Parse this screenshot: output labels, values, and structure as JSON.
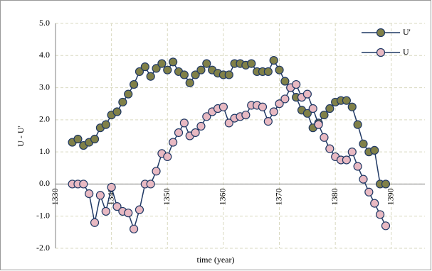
{
  "chart_data": {
    "type": "line",
    "xlabel": "time (year)",
    "ylabel": "U - U'",
    "x": [
      1333,
      1334,
      1335,
      1336,
      1337,
      1338,
      1339,
      1340,
      1341,
      1342,
      1343,
      1344,
      1345,
      1346,
      1347,
      1348,
      1349,
      1350,
      1351,
      1352,
      1353,
      1354,
      1355,
      1356,
      1357,
      1358,
      1359,
      1360,
      1361,
      1362,
      1363,
      1364,
      1365,
      1366,
      1367,
      1368,
      1369,
      1370,
      1371,
      1372,
      1373,
      1374,
      1375,
      1376,
      1377,
      1378,
      1379,
      1380,
      1381,
      1382,
      1383,
      1384,
      1385,
      1386,
      1387,
      1388,
      1389
    ],
    "series": [
      {
        "name": "U'",
        "color": "#1f3864",
        "marker_color": "#808048",
        "values": [
          1.3,
          1.4,
          1.2,
          1.3,
          1.4,
          1.75,
          1.85,
          2.15,
          2.25,
          2.55,
          2.8,
          3.1,
          3.5,
          3.65,
          3.35,
          3.6,
          3.75,
          3.55,
          3.8,
          3.5,
          3.4,
          3.15,
          3.4,
          3.55,
          3.75,
          3.55,
          3.45,
          3.4,
          3.4,
          3.75,
          3.75,
          3.7,
          3.75,
          3.5,
          3.5,
          3.5,
          3.85,
          3.55,
          3.2,
          3.0,
          2.7,
          2.3,
          2.2,
          1.75,
          1.9,
          2.15,
          2.35,
          2.55,
          2.6,
          2.6,
          2.4,
          1.85,
          1.25,
          1.0,
          1.05,
          0.0,
          0.0
        ]
      },
      {
        "name": "U",
        "color": "#1f3864",
        "marker_color": "#e8b9c2",
        "values": [
          0,
          0,
          0,
          -0.3,
          -1.2,
          -0.35,
          -0.85,
          -0.1,
          -0.7,
          -0.85,
          -0.9,
          -1.4,
          -0.8,
          0.0,
          0.0,
          0.4,
          0.95,
          0.85,
          1.3,
          1.6,
          1.9,
          1.5,
          1.6,
          1.8,
          2.1,
          2.25,
          2.35,
          2.4,
          1.9,
          2.05,
          2.1,
          2.15,
          2.45,
          2.45,
          2.4,
          1.95,
          2.25,
          2.5,
          2.65,
          3.0,
          3.1,
          2.7,
          2.8,
          2.35,
          1.85,
          1.45,
          1.1,
          0.85,
          0.75,
          0.75,
          1.0,
          0.55,
          0.15,
          -0.25,
          -0.6,
          -0.95,
          -1.3
        ]
      }
    ],
    "xlim": [
      1330,
      1396
    ],
    "xticks": [
      1330,
      1340,
      1350,
      1360,
      1370,
      1380,
      1390
    ],
    "ylim": [
      -2,
      5
    ],
    "yticks": [
      {
        "value": -2,
        "label": "-2.0"
      },
      {
        "value": -1,
        "label": "-1.0"
      },
      {
        "value": 0,
        "label": "0.0"
      },
      {
        "value": 1,
        "label": "1.0"
      },
      {
        "value": 2,
        "label": "2.0"
      },
      {
        "value": 3,
        "label": "3.0"
      },
      {
        "value": 4,
        "label": "4.0"
      },
      {
        "value": 5,
        "label": "5.0"
      }
    ],
    "grid": true,
    "legend": "top-right"
  }
}
